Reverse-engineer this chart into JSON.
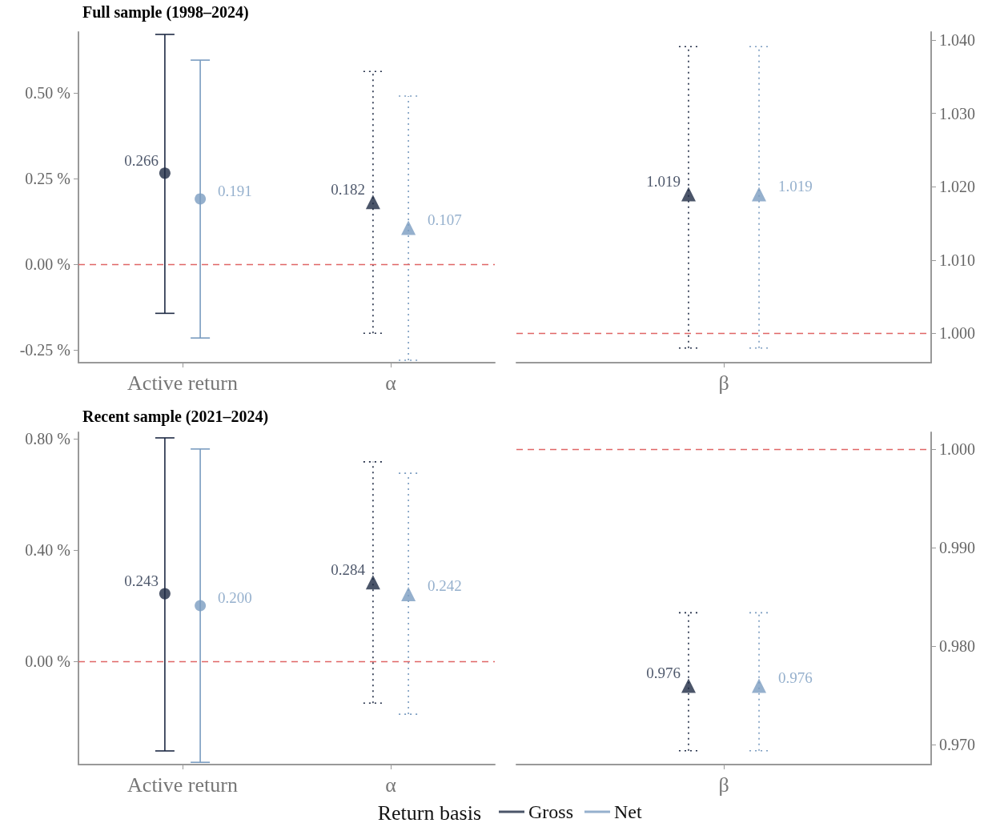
{
  "chart_data": [
    {
      "type": "scatter",
      "title": "Full sample (1998–2024)",
      "categories": [
        "Active return",
        "α",
        "β"
      ],
      "ylim": [
        -0.287,
        0.678
      ],
      "yticks": [
        {
          "value": -0.25,
          "label": "-0.25 %"
        },
        {
          "value": 0,
          "label": "0.00 %"
        },
        {
          "value": 0.25,
          "label": "0.25 %"
        },
        {
          "value": 0.5,
          "label": "0.50 %"
        }
      ],
      "y2lim": [
        0.996,
        1.0411
      ],
      "y2ticks": [
        {
          "value": 1.0,
          "label": "1.000"
        },
        {
          "value": 1.01,
          "label": "1.010"
        },
        {
          "value": 1.02,
          "label": "1.020"
        },
        {
          "value": 1.03,
          "label": "1.030"
        },
        {
          "value": 1.04,
          "label": "1.040"
        }
      ],
      "series": [
        {
          "color": "#1e2a44",
          "marker": "circle",
          "line_style": "solid",
          "values": [
            0.266,
            null,
            null
          ],
          "value_labels": [
            "0.266",
            null,
            null
          ],
          "errors": [
            [
              -0.143,
              0.671
            ],
            null,
            null
          ]
        },
        {
          "color": "#7a9cc0",
          "marker": "circle",
          "line_style": "solid",
          "values": [
            0.191,
            null,
            null
          ],
          "value_labels": [
            "0.191",
            null,
            null
          ],
          "errors": [
            [
              -0.215,
              0.596
            ],
            null,
            null
          ]
        },
        {
          "color": "#1e2a44",
          "marker": "triangle",
          "line_style": "dotted",
          "values": [
            null,
            0.182,
            null
          ],
          "value_labels": [
            null,
            "0.182",
            null
          ],
          "errors": [
            null,
            [
              -0.201,
              0.563
            ],
            null
          ]
        },
        {
          "color": "#7a9cc0",
          "marker": "triangle",
          "line_style": "dotted",
          "values": [
            null,
            0.107,
            null
          ],
          "value_labels": [
            null,
            "0.107",
            null
          ],
          "errors": [
            null,
            [
              -0.28,
              0.491
            ],
            null
          ]
        },
        {
          "color": "#1e2a44",
          "marker": "triangle",
          "line_style": "dotted",
          "axis": "y2",
          "values": [
            null,
            null,
            1.019
          ],
          "value_labels": [
            null,
            null,
            "1.019"
          ],
          "errors": [
            null,
            null,
            [
              0.998,
              1.0391
            ]
          ]
        },
        {
          "color": "#7a9cc0",
          "marker": "triangle",
          "line_style": "dotted",
          "axis": "y2",
          "values": [
            null,
            null,
            1.019
          ],
          "value_labels": [
            null,
            null,
            "1.019"
          ],
          "errors": [
            null,
            null,
            [
              0.998,
              1.0391
            ]
          ]
        }
      ],
      "ref_lines": [
        {
          "axis": "y",
          "value": 0,
          "color": "#e06666",
          "line_style": "dashed"
        },
        {
          "axis": "y2",
          "value": 1.0,
          "color": "#e06666",
          "line_style": "dashed"
        }
      ]
    },
    {
      "type": "scatter",
      "title": "Recent sample (2021–2024)",
      "categories": [
        "Active return",
        "α",
        "β"
      ],
      "ylim": [
        -0.371,
        0.823
      ],
      "yticks": [
        {
          "value": 0,
          "label": "0.00 %"
        },
        {
          "value": 0.4,
          "label": "0.40 %"
        },
        {
          "value": 0.8,
          "label": "0.80 %"
        }
      ],
      "y2lim": [
        0.968,
        1.0017
      ],
      "y2ticks": [
        {
          "value": 0.97,
          "label": "0.970"
        },
        {
          "value": 0.98,
          "label": "0.980"
        },
        {
          "value": 0.99,
          "label": "0.990"
        },
        {
          "value": 1.0,
          "label": "1.000"
        }
      ],
      "legend": "bottom",
      "legend_title": "Return basis",
      "series": [
        {
          "name": "Gross",
          "color": "#1e2a44",
          "marker": "circle",
          "line_style": "solid",
          "values": [
            0.243,
            null,
            null
          ],
          "value_labels": [
            "0.243",
            null,
            null
          ],
          "errors": [
            [
              -0.322,
              0.803
            ],
            null,
            null
          ]
        },
        {
          "name": "Net",
          "color": "#7a9cc0",
          "marker": "circle",
          "line_style": "solid",
          "values": [
            0.2,
            null,
            null
          ],
          "value_labels": [
            "0.200",
            null,
            null
          ],
          "errors": [
            [
              -0.363,
              0.763
            ],
            null,
            null
          ]
        },
        {
          "color": "#1e2a44",
          "marker": "triangle",
          "line_style": "dotted",
          "values": [
            null,
            0.284,
            null
          ],
          "value_labels": [
            null,
            "0.284",
            null
          ],
          "errors": [
            null,
            [
              -0.15,
              0.717
            ],
            null
          ]
        },
        {
          "color": "#7a9cc0",
          "marker": "triangle",
          "line_style": "dotted",
          "values": [
            null,
            0.242,
            null
          ],
          "value_labels": [
            null,
            "0.242",
            null
          ],
          "errors": [
            null,
            [
              -0.19,
              0.676
            ],
            null
          ]
        },
        {
          "color": "#1e2a44",
          "marker": "triangle",
          "line_style": "dotted",
          "axis": "y2",
          "values": [
            null,
            null,
            0.976
          ],
          "value_labels": [
            null,
            null,
            "0.976"
          ],
          "errors": [
            null,
            null,
            [
              0.9694,
              0.9834
            ]
          ]
        },
        {
          "color": "#7a9cc0",
          "marker": "triangle",
          "line_style": "dotted",
          "axis": "y2",
          "values": [
            null,
            null,
            0.976
          ],
          "value_labels": [
            null,
            null,
            "0.976"
          ],
          "errors": [
            null,
            null,
            [
              0.9694,
              0.9834
            ]
          ]
        }
      ],
      "ref_lines": [
        {
          "axis": "y",
          "value": 0,
          "color": "#e06666",
          "line_style": "dashed"
        },
        {
          "axis": "y2",
          "value": 1.0,
          "color": "#e06666",
          "line_style": "dashed"
        }
      ]
    }
  ]
}
